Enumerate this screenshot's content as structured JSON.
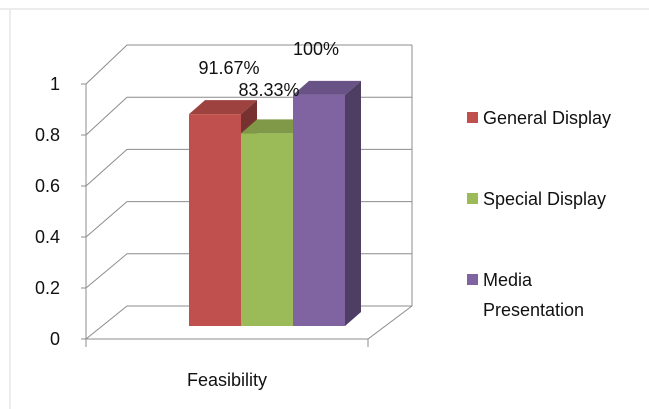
{
  "chart_data": {
    "type": "bar",
    "title": "",
    "xlabel": "",
    "ylabel": "",
    "categories": [
      "Feasibility"
    ],
    "series": [
      {
        "name": "General Display",
        "values": [
          0.9167
        ],
        "label": "91.67%",
        "color": "#c0504d"
      },
      {
        "name": "Special Display",
        "values": [
          0.8333
        ],
        "label": "83.33%",
        "color": "#9bbb59"
      },
      {
        "name": "Media Presentation",
        "values": [
          1.0
        ],
        "label": "100%",
        "color": "#8064a2"
      }
    ],
    "ylim": [
      0,
      1
    ],
    "yticks": [
      "0",
      "0.2",
      "0.4",
      "0.6",
      "0.8",
      "1"
    ],
    "grid": true,
    "legend": "right",
    "style": "3d-bar"
  }
}
